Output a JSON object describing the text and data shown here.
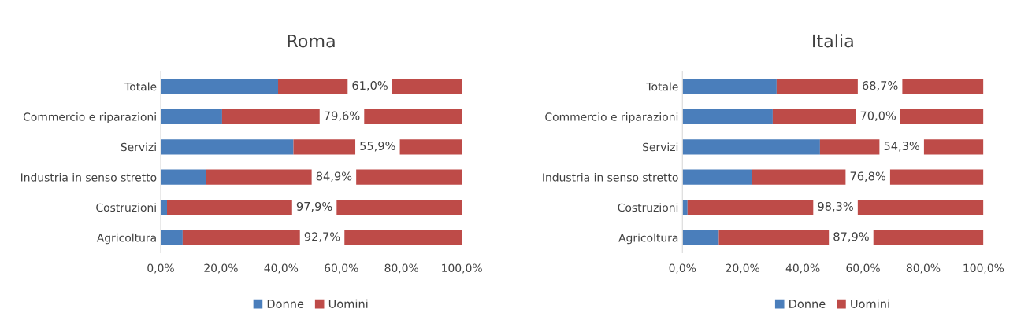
{
  "chart_data": [
    {
      "type": "bar",
      "title": "Roma",
      "orientation": "horizontal",
      "stacked": true,
      "categories": [
        "Totale",
        "Commercio e riparazioni",
        "Servizi",
        "Industria in senso stretto",
        "Costruzioni",
        "Agricoltura"
      ],
      "series": [
        {
          "name": "Donne",
          "color": "#4a7ebb",
          "values": [
            39.0,
            20.4,
            44.1,
            15.1,
            2.1,
            7.3
          ]
        },
        {
          "name": "Uomini",
          "color": "#be4b48",
          "values": [
            61.0,
            79.6,
            55.9,
            84.9,
            97.9,
            92.7
          ],
          "value_labels": [
            "61,0%",
            "79,6%",
            "55,9%",
            "84,9%",
            "97,9%",
            "92,7%"
          ]
        }
      ],
      "xlim": [
        0,
        100
      ],
      "xticks": [
        {
          "value": 0,
          "label": "0,0%"
        },
        {
          "value": 20,
          "label": "20,0%"
        },
        {
          "value": 40,
          "label": "40,0%"
        },
        {
          "value": 60,
          "label": "60,0%"
        },
        {
          "value": 80,
          "label": "80,0%"
        },
        {
          "value": 100,
          "label": "100,0%"
        }
      ],
      "legend": "bottom",
      "grid": false
    },
    {
      "type": "bar",
      "title": "Italia",
      "orientation": "horizontal",
      "stacked": true,
      "categories": [
        "Totale",
        "Commercio e riparazioni",
        "Servizi",
        "Industria in senso stretto",
        "Costruzioni",
        "Agricoltura"
      ],
      "series": [
        {
          "name": "Donne",
          "color": "#4a7ebb",
          "values": [
            31.3,
            30.0,
            45.7,
            23.2,
            1.7,
            12.1
          ]
        },
        {
          "name": "Uomini",
          "color": "#be4b48",
          "values": [
            68.7,
            70.0,
            54.3,
            76.8,
            98.3,
            87.9
          ],
          "value_labels": [
            "68,7%",
            "70,0%",
            "54,3%",
            "76,8%",
            "98,3%",
            "87,9%"
          ]
        }
      ],
      "xlim": [
        0,
        100
      ],
      "xticks": [
        {
          "value": 0,
          "label": "0,0%"
        },
        {
          "value": 20,
          "label": "20,0%"
        },
        {
          "value": 40,
          "label": "40,0%"
        },
        {
          "value": 60,
          "label": "60,0%"
        },
        {
          "value": 80,
          "label": "80,0%"
        },
        {
          "value": 100,
          "label": "100,0%"
        }
      ],
      "legend": "bottom",
      "grid": false
    }
  ]
}
